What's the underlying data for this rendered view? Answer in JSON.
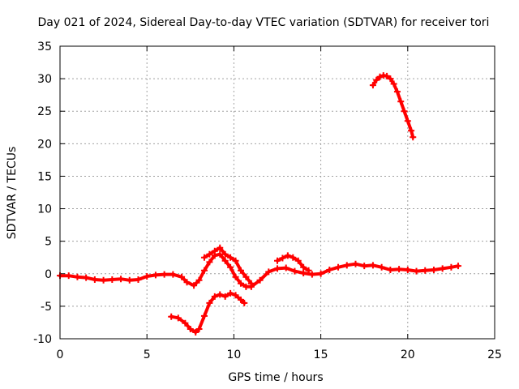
{
  "chart_data": {
    "type": "scatter",
    "title": "Day 021 of 2024, Sidereal Day-to-day VTEC variation (SDTVAR) for receiver tori",
    "xlabel": "GPS time / hours",
    "ylabel": "SDTVAR / TECUs",
    "xlim": [
      0,
      25
    ],
    "ylim": [
      -10,
      35
    ],
    "xticks": [
      "0",
      "5",
      "10",
      "15",
      "20",
      "25"
    ],
    "yticks": [
      "-10",
      "-5",
      "0",
      "5",
      "10",
      "15",
      "20",
      "25",
      "30",
      "35"
    ],
    "grid": true,
    "marker": "plus",
    "series_color": "#ff0000",
    "series": [
      {
        "name": "main",
        "x": [
          0,
          0.5,
          1,
          1.5,
          2,
          2.5,
          3,
          3.5,
          4,
          4.5,
          5,
          5.5,
          6,
          6.5,
          7,
          7.3,
          7.7,
          8,
          8.3,
          8.6,
          8.9,
          9.2,
          9.5,
          9.8,
          10.1,
          10.4,
          10.7,
          11,
          11.5,
          12,
          12.5,
          13,
          13.5,
          14,
          14.5,
          15,
          15.5,
          16,
          16.5,
          17,
          17.5,
          18,
          18.5,
          19,
          19.5,
          20,
          20.5,
          21,
          21.5,
          22,
          22.5,
          22.9
        ],
        "y": [
          -0.3,
          -0.3,
          -0.5,
          -0.6,
          -0.9,
          -1.0,
          -0.9,
          -0.8,
          -1.0,
          -0.9,
          -0.4,
          -0.2,
          -0.1,
          -0.1,
          -0.5,
          -1.3,
          -1.8,
          -1.0,
          0.5,
          1.8,
          2.8,
          3.0,
          2.0,
          1.0,
          -0.5,
          -1.5,
          -2.0,
          -2.0,
          -1.0,
          0.3,
          0.8,
          0.9,
          0.4,
          0.1,
          -0.1,
          0.0,
          0.6,
          1.0,
          1.3,
          1.5,
          1.2,
          1.3,
          1.0,
          0.6,
          0.7,
          0.6,
          0.4,
          0.5,
          0.6,
          0.8,
          1.0,
          1.2
        ]
      },
      {
        "name": "upper-band",
        "x": [
          8.3,
          8.6,
          8.9,
          9.2,
          9.5,
          9.8,
          10.1,
          10.4,
          10.7,
          11.0
        ],
        "y": [
          2.5,
          3.0,
          3.5,
          4.0,
          3.0,
          2.5,
          2.0,
          0.5,
          -0.5,
          -1.5
        ]
      },
      {
        "name": "lower-segment",
        "x": [
          6.4,
          6.8,
          7.2,
          7.5,
          7.8,
          8.0,
          8.3,
          8.6,
          8.9,
          9.2,
          9.5,
          9.8,
          10.1,
          10.4,
          10.6
        ],
        "y": [
          -6.6,
          -6.8,
          -7.6,
          -8.5,
          -9.0,
          -8.5,
          -6.5,
          -4.5,
          -3.5,
          -3.2,
          -3.5,
          -3.0,
          -3.3,
          -4.0,
          -4.5
        ]
      },
      {
        "name": "bump-13h",
        "x": [
          12.5,
          12.8,
          13.1,
          13.4,
          13.7,
          14.0,
          14.3
        ],
        "y": [
          2.0,
          2.4,
          2.8,
          2.5,
          2.0,
          1.0,
          0.5
        ]
      },
      {
        "name": "upper-arc",
        "x": [
          18.0,
          18.2,
          18.4,
          18.6,
          18.8,
          19.0,
          19.2,
          19.4,
          19.6,
          19.8,
          20.0,
          20.2,
          20.3
        ],
        "y": [
          29.0,
          29.8,
          30.3,
          30.5,
          30.4,
          30.0,
          29.2,
          28.0,
          26.5,
          25.0,
          23.5,
          22.0,
          21.0
        ]
      }
    ]
  }
}
